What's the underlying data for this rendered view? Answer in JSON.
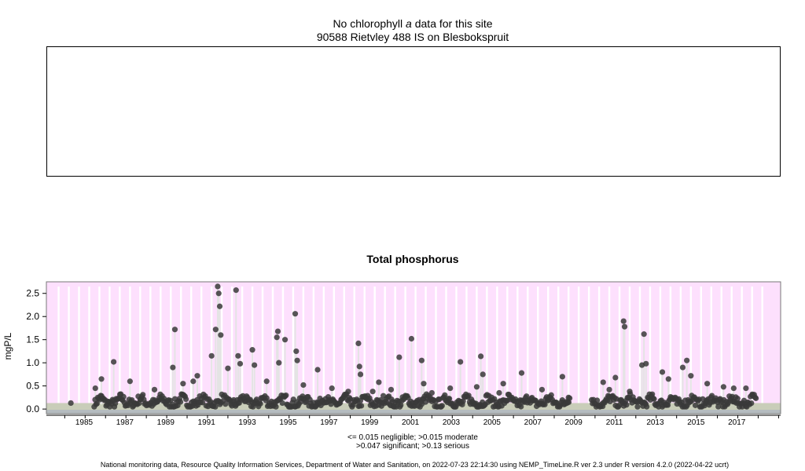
{
  "top_chart": {
    "title_prefix": "No chlorophyll",
    "title_italic": "a",
    "title_suffix": " data for this site",
    "subtitle": "90588 Rietvley 488 IS on Blesbokspruit"
  },
  "colors": {
    "background": "#fde0fd",
    "gridline": "#ffffff",
    "points": "#3a3a3a",
    "sample_lines": "#e4e4e4",
    "band_negligible": "#b5bcc0",
    "band_moderate": "#c9cdb9"
  },
  "chart_data": {
    "type": "scatter",
    "title": "Total phosphorus",
    "ylabel": "mgP/L",
    "xlabel": "",
    "xlim": [
      1983.6,
      2019.6
    ],
    "ylim": [
      -0.1,
      2.75
    ],
    "x_ticks": [
      1985,
      1987,
      1989,
      1991,
      1993,
      1995,
      1997,
      1999,
      2001,
      2003,
      2005,
      2007,
      2009,
      2011,
      2013,
      2015,
      2017
    ],
    "x_tick_labels": [
      "1985",
      "1987",
      "1989",
      "1991",
      "1993",
      "1995",
      "1997",
      "1999",
      "2001",
      "2003",
      "2005",
      "2007",
      "2009",
      "2011",
      "2013",
      "2015",
      "2017"
    ],
    "y_ticks": [
      0.0,
      0.5,
      1.0,
      1.5,
      2.0,
      2.5
    ],
    "y_tick_labels": [
      "0.0",
      "0.5",
      "1.0",
      "1.5",
      "2.0",
      "2.5"
    ],
    "grid": "vertical white lines at sampling months",
    "thresholds": [
      {
        "level": "negligible",
        "max": 0.015
      },
      {
        "level": "moderate",
        "max": 0.047
      },
      {
        "level": "significant",
        "max": 0.13
      },
      {
        "level": "serious",
        "max": null
      }
    ],
    "threshold_note_line1": "<= 0.015 negligible; >0.015 moderate",
    "threshold_note_line2": ">0.047 significant; >0.13 serious",
    "peaks": [
      {
        "x": 1984.8,
        "y": 0.13
      },
      {
        "x": 1986.0,
        "y": 0.45
      },
      {
        "x": 1986.3,
        "y": 0.65
      },
      {
        "x": 1986.9,
        "y": 1.02
      },
      {
        "x": 1987.7,
        "y": 0.6
      },
      {
        "x": 1988.9,
        "y": 0.42
      },
      {
        "x": 1989.8,
        "y": 0.9
      },
      {
        "x": 1989.9,
        "y": 1.72
      },
      {
        "x": 1990.3,
        "y": 0.55
      },
      {
        "x": 1990.8,
        "y": 0.6
      },
      {
        "x": 1991.0,
        "y": 0.72
      },
      {
        "x": 1991.7,
        "y": 1.15
      },
      {
        "x": 1991.9,
        "y": 1.72
      },
      {
        "x": 1992.0,
        "y": 2.65
      },
      {
        "x": 1992.05,
        "y": 2.5
      },
      {
        "x": 1992.1,
        "y": 2.22
      },
      {
        "x": 1992.15,
        "y": 1.6
      },
      {
        "x": 1992.5,
        "y": 0.88
      },
      {
        "x": 1992.9,
        "y": 2.57
      },
      {
        "x": 1993.0,
        "y": 1.15
      },
      {
        "x": 1993.1,
        "y": 0.98
      },
      {
        "x": 1993.7,
        "y": 1.28
      },
      {
        "x": 1993.8,
        "y": 0.95
      },
      {
        "x": 1994.4,
        "y": 0.6
      },
      {
        "x": 1994.9,
        "y": 1.55
      },
      {
        "x": 1994.95,
        "y": 1.68
      },
      {
        "x": 1995.0,
        "y": 1.0
      },
      {
        "x": 1995.3,
        "y": 1.5
      },
      {
        "x": 1995.8,
        "y": 2.06
      },
      {
        "x": 1995.85,
        "y": 1.25
      },
      {
        "x": 1995.9,
        "y": 1.05
      },
      {
        "x": 1996.2,
        "y": 0.52
      },
      {
        "x": 1996.9,
        "y": 0.85
      },
      {
        "x": 1997.6,
        "y": 0.45
      },
      {
        "x": 1998.4,
        "y": 0.38
      },
      {
        "x": 1998.9,
        "y": 1.42
      },
      {
        "x": 1998.95,
        "y": 0.92
      },
      {
        "x": 1999.0,
        "y": 0.75
      },
      {
        "x": 1999.6,
        "y": 0.38
      },
      {
        "x": 1999.9,
        "y": 0.58
      },
      {
        "x": 2000.5,
        "y": 0.42
      },
      {
        "x": 2000.9,
        "y": 1.12
      },
      {
        "x": 2001.5,
        "y": 1.52
      },
      {
        "x": 2002.0,
        "y": 1.05
      },
      {
        "x": 2002.1,
        "y": 0.55
      },
      {
        "x": 2002.5,
        "y": 0.35
      },
      {
        "x": 2003.4,
        "y": 0.45
      },
      {
        "x": 2003.9,
        "y": 1.02
      },
      {
        "x": 2004.7,
        "y": 0.48
      },
      {
        "x": 2004.9,
        "y": 1.14
      },
      {
        "x": 2005.0,
        "y": 0.75
      },
      {
        "x": 2005.8,
        "y": 0.35
      },
      {
        "x": 2006.0,
        "y": 0.55
      },
      {
        "x": 2006.9,
        "y": 0.78
      },
      {
        "x": 2007.9,
        "y": 0.42
      },
      {
        "x": 2008.9,
        "y": 0.7
      },
      {
        "x": 2009.2,
        "y": 0.25
      },
      {
        "x": 2010.9,
        "y": 0.58
      },
      {
        "x": 2011.2,
        "y": 0.42
      },
      {
        "x": 2011.5,
        "y": 0.68
      },
      {
        "x": 2011.9,
        "y": 1.9
      },
      {
        "x": 2011.95,
        "y": 1.78
      },
      {
        "x": 2012.2,
        "y": 0.38
      },
      {
        "x": 2012.8,
        "y": 0.95
      },
      {
        "x": 2012.9,
        "y": 1.62
      },
      {
        "x": 2013.0,
        "y": 0.98
      },
      {
        "x": 2013.8,
        "y": 0.8
      },
      {
        "x": 2014.1,
        "y": 0.65
      },
      {
        "x": 2014.8,
        "y": 0.9
      },
      {
        "x": 2015.0,
        "y": 1.05
      },
      {
        "x": 2015.2,
        "y": 0.72
      },
      {
        "x": 2016.0,
        "y": 0.55
      },
      {
        "x": 2016.8,
        "y": 0.48
      },
      {
        "x": 2017.3,
        "y": 0.45
      },
      {
        "x": 2017.9,
        "y": 0.45
      },
      {
        "x": 2018.2,
        "y": 0.3
      }
    ],
    "sampling_gaps": [
      [
        1984.0,
        1985.9
      ],
      [
        2009.3,
        2010.3
      ]
    ],
    "baseline_level": 0.1
  },
  "footer": "National monitoring data, Resource Quality Information Services, Department of Water and Sanitation, on 2022-07-23 22:14:30 using NEMP_TimeLine.R ver 2.3 under R version 4.2.0 (2022-04-22 ucrt)"
}
